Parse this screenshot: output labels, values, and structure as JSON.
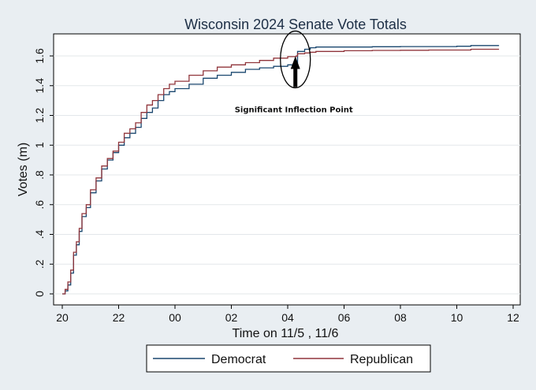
{
  "chart_data": {
    "type": "line",
    "title": "Wisconsin 2024 Senate Vote Totals",
    "xlabel": "Time on 11/5 , 11/6",
    "ylabel": "Votes (m)",
    "xlim": [
      20,
      35.5
    ],
    "ylim": [
      0,
      1.75
    ],
    "x_ticks": [
      {
        "value": 20,
        "label": "20"
      },
      {
        "value": 22,
        "label": "22"
      },
      {
        "value": 24,
        "label": "00"
      },
      {
        "value": 26,
        "label": "02"
      },
      {
        "value": 28,
        "label": "04"
      },
      {
        "value": 30,
        "label": "06"
      },
      {
        "value": 32,
        "label": "08"
      },
      {
        "value": 34,
        "label": "10"
      },
      {
        "value": 36,
        "label": "12"
      }
    ],
    "y_ticks": [
      {
        "value": 0,
        "label": "0"
      },
      {
        "value": 0.2,
        "label": ".2"
      },
      {
        "value": 0.4,
        "label": ".4"
      },
      {
        "value": 0.6,
        "label": ".6"
      },
      {
        "value": 0.8,
        "label": ".8"
      },
      {
        "value": 1.0,
        "label": "1"
      },
      {
        "value": 1.2,
        "label": "1.2"
      },
      {
        "value": 1.4,
        "label": "1.4"
      },
      {
        "value": 1.6,
        "label": "1.6"
      }
    ],
    "grid": true,
    "legend_position": "bottom",
    "series": [
      {
        "name": "Democrat",
        "color": "#1a476f",
        "points": [
          [
            20.0,
            0.0
          ],
          [
            20.1,
            0.02
          ],
          [
            20.2,
            0.06
          ],
          [
            20.3,
            0.14
          ],
          [
            20.4,
            0.26
          ],
          [
            20.5,
            0.33
          ],
          [
            20.6,
            0.42
          ],
          [
            20.7,
            0.52
          ],
          [
            20.85,
            0.58
          ],
          [
            21.0,
            0.68
          ],
          [
            21.2,
            0.76
          ],
          [
            21.4,
            0.84
          ],
          [
            21.6,
            0.9
          ],
          [
            21.8,
            0.95
          ],
          [
            22.0,
            1.0
          ],
          [
            22.2,
            1.05
          ],
          [
            22.4,
            1.08
          ],
          [
            22.6,
            1.12
          ],
          [
            22.8,
            1.18
          ],
          [
            23.0,
            1.22
          ],
          [
            23.2,
            1.25
          ],
          [
            23.4,
            1.3
          ],
          [
            23.6,
            1.34
          ],
          [
            23.8,
            1.36
          ],
          [
            24.0,
            1.38
          ],
          [
            24.5,
            1.41
          ],
          [
            25.0,
            1.45
          ],
          [
            25.5,
            1.47
          ],
          [
            26.0,
            1.49
          ],
          [
            26.5,
            1.51
          ],
          [
            27.0,
            1.52
          ],
          [
            27.5,
            1.53
          ],
          [
            28.0,
            1.54
          ],
          [
            28.3,
            1.545
          ],
          [
            28.35,
            1.63
          ],
          [
            28.6,
            1.645
          ],
          [
            28.8,
            1.655
          ],
          [
            29.0,
            1.66
          ],
          [
            30.0,
            1.66
          ],
          [
            31.0,
            1.662
          ],
          [
            32.0,
            1.663
          ],
          [
            33.0,
            1.663
          ],
          [
            34.0,
            1.665
          ],
          [
            34.5,
            1.67
          ],
          [
            35.5,
            1.67
          ]
        ]
      },
      {
        "name": "Republican",
        "color": "#90353b",
        "points": [
          [
            20.0,
            0.0
          ],
          [
            20.1,
            0.03
          ],
          [
            20.2,
            0.08
          ],
          [
            20.3,
            0.16
          ],
          [
            20.4,
            0.28
          ],
          [
            20.5,
            0.35
          ],
          [
            20.6,
            0.44
          ],
          [
            20.7,
            0.54
          ],
          [
            20.85,
            0.6
          ],
          [
            21.0,
            0.7
          ],
          [
            21.2,
            0.78
          ],
          [
            21.4,
            0.86
          ],
          [
            21.6,
            0.91
          ],
          [
            21.8,
            0.96
          ],
          [
            22.0,
            1.02
          ],
          [
            22.2,
            1.08
          ],
          [
            22.4,
            1.11
          ],
          [
            22.6,
            1.15
          ],
          [
            22.8,
            1.22
          ],
          [
            23.0,
            1.27
          ],
          [
            23.2,
            1.3
          ],
          [
            23.4,
            1.34
          ],
          [
            23.6,
            1.38
          ],
          [
            23.8,
            1.41
          ],
          [
            24.0,
            1.43
          ],
          [
            24.5,
            1.47
          ],
          [
            25.0,
            1.5
          ],
          [
            25.5,
            1.525
          ],
          [
            26.0,
            1.54
          ],
          [
            26.5,
            1.555
          ],
          [
            27.0,
            1.57
          ],
          [
            27.5,
            1.585
          ],
          [
            28.0,
            1.595
          ],
          [
            28.3,
            1.6
          ],
          [
            28.35,
            1.615
          ],
          [
            28.6,
            1.62
          ],
          [
            28.8,
            1.625
          ],
          [
            29.0,
            1.63
          ],
          [
            30.0,
            1.635
          ],
          [
            31.0,
            1.637
          ],
          [
            32.0,
            1.638
          ],
          [
            33.0,
            1.64
          ],
          [
            34.0,
            1.64
          ],
          [
            34.5,
            1.645
          ],
          [
            35.5,
            1.645
          ]
        ]
      }
    ],
    "annotations": [
      {
        "text": "Significant Inflection Point",
        "x": 28.3,
        "y": 1.55,
        "marker": "circle-with-arrow"
      }
    ]
  }
}
